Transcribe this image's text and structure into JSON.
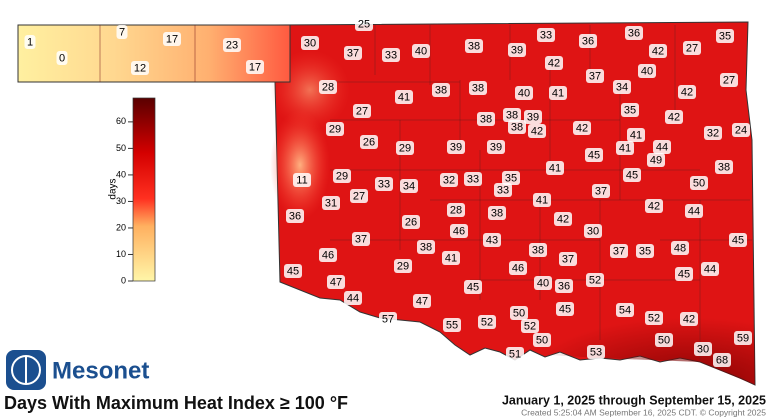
{
  "logo": {
    "text": "Mesonet"
  },
  "title": "Days With Maximum Heat Index ≥ 100 °F",
  "date_range": "January 1, 2025 through September 15, 2025",
  "created": "Created 5:25:04 AM September 16, 2025 CDT. © Copyright 2025",
  "legend": {
    "label": "days",
    "range": [
      0,
      69
    ],
    "ticks": [
      0,
      10,
      20,
      30,
      40,
      50,
      60
    ]
  },
  "stations": [
    1,
    0,
    7,
    17,
    12,
    23,
    17,
    25,
    30,
    37,
    33,
    40,
    38,
    39,
    33,
    36,
    36,
    42,
    27,
    35,
    42,
    40,
    27,
    28,
    41,
    38,
    38,
    40,
    41,
    37,
    34,
    42,
    27,
    38,
    38,
    39,
    38,
    42,
    42,
    35,
    42,
    29,
    26,
    29,
    39,
    39,
    41,
    32,
    24,
    45,
    41,
    44,
    49,
    38,
    11,
    29,
    33,
    34,
    32,
    33,
    35,
    41,
    37,
    45,
    50,
    31,
    27,
    33,
    41,
    36,
    26,
    28,
    38,
    42,
    42,
    44,
    37,
    38,
    46,
    43,
    30,
    45,
    41,
    38,
    37,
    37,
    35,
    48,
    45,
    46,
    29,
    46,
    45,
    44,
    47,
    45,
    40,
    36,
    52,
    44,
    47,
    45,
    57,
    55,
    52,
    50,
    52,
    54,
    52,
    42,
    50,
    50,
    59,
    51,
    53,
    30,
    68
  ]
}
